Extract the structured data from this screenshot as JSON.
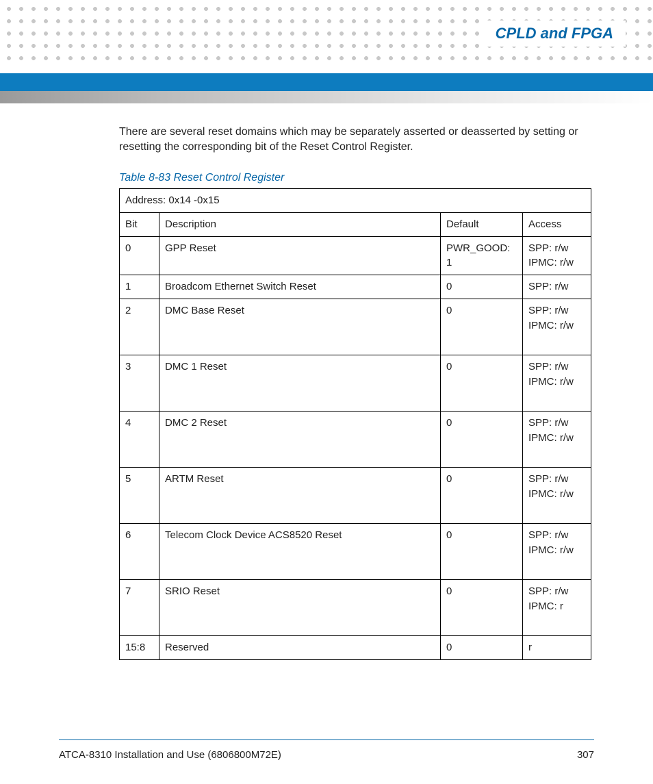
{
  "header": {
    "title": "CPLD and FPGA",
    "title_color": "#0767a8",
    "bar_color": "#0d7cbf",
    "dot_color": "#c8c8c8"
  },
  "intro": "There are several reset domains which may be separately asserted or deasserted by setting or resetting the corresponding bit of the Reset Control Register.",
  "table": {
    "caption": "Table 8-83 Reset Control Register",
    "caption_color": "#0767a8",
    "border_color": "#000000",
    "address_label": "Address: 0x14 -0x15",
    "columns": {
      "bit": "Bit",
      "description": "Description",
      "default": "Default",
      "access": "Access"
    },
    "rows": [
      {
        "bit": "0",
        "description": "GPP Reset",
        "default": "PWR_GOOD: 1",
        "access": "SPP: r/w\nIPMC: r/w",
        "tall": false
      },
      {
        "bit": "1",
        "description": "Broadcom Ethernet Switch Reset",
        "default": "0",
        "access": "SPP: r/w",
        "tall": false
      },
      {
        "bit": "2",
        "description": "DMC Base Reset",
        "default": "0",
        "access": "SPP: r/w\nIPMC: r/w",
        "tall": true
      },
      {
        "bit": "3",
        "description": "DMC 1 Reset",
        "default": "0",
        "access": "SPP: r/w\nIPMC: r/w",
        "tall": true
      },
      {
        "bit": "4",
        "description": "DMC 2 Reset",
        "default": "0",
        "access": "SPP: r/w\nIPMC: r/w",
        "tall": true
      },
      {
        "bit": "5",
        "description": "ARTM Reset",
        "default": "0",
        "access": "SPP: r/w\nIPMC: r/w",
        "tall": true
      },
      {
        "bit": "6",
        "description": "Telecom Clock Device ACS8520 Reset",
        "default": "0",
        "access": "SPP: r/w\nIPMC: r/w",
        "tall": true
      },
      {
        "bit": "7",
        "description": "SRIO Reset",
        "default": "0",
        "access": "SPP: r/w\nIPMC: r",
        "tall": true
      },
      {
        "bit": "15:8",
        "description": "Reserved",
        "default": "0",
        "access": "r",
        "tall": false
      }
    ]
  },
  "footer": {
    "doc_title": "ATCA-8310 Installation and Use (6806800M72E)",
    "page_number": "307",
    "line_color": "#0767a8"
  }
}
